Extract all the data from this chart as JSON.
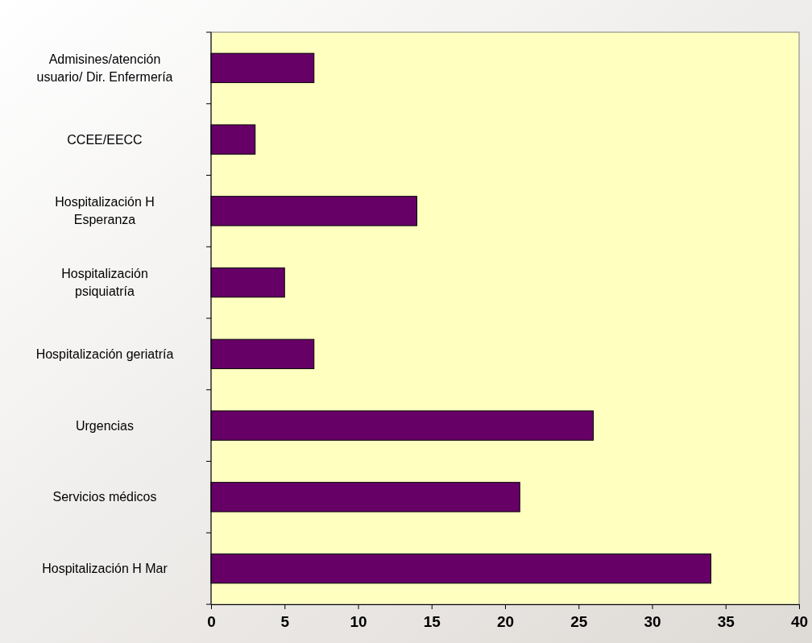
{
  "chart_data": {
    "type": "bar",
    "orientation": "horizontal",
    "categories": [
      "Admisines/atención usuario/ Dir. Enfermería",
      "CCEE/EECC",
      "Hospitalización H Esperanza",
      "Hospitalización psiquiatría",
      "Hospitalización geriatría",
      "Urgencias",
      "Servicios médicos",
      "Hospitalización H Mar"
    ],
    "values": [
      7,
      3,
      14,
      5,
      7,
      26,
      21,
      34
    ],
    "color": "#660066",
    "xlim": [
      0,
      40
    ],
    "xticks": [
      0,
      5,
      10,
      15,
      20,
      25,
      30,
      35,
      40
    ],
    "grid": false
  }
}
